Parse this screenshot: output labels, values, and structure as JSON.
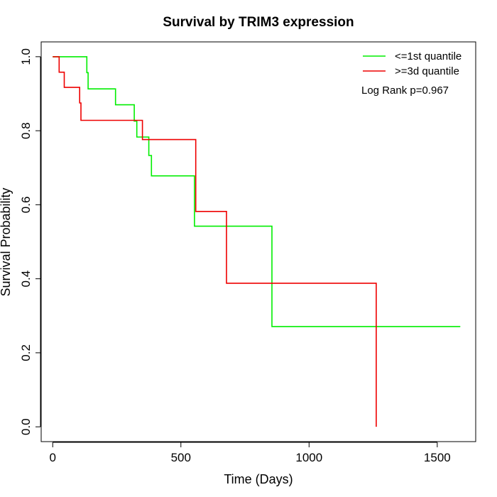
{
  "chart_data": {
    "type": "line",
    "title": "Survival by TRIM3 expression",
    "xlabel": "Time (Days)",
    "ylabel": "Survival Probability",
    "xlim": [
      -45,
      1650
    ],
    "ylim": [
      -0.04,
      1.04
    ],
    "x_ticks": [
      0,
      500,
      1000,
      1500
    ],
    "x_tick_labels": [
      "0",
      "500",
      "1000",
      "1500"
    ],
    "y_ticks": [
      0.0,
      0.2,
      0.4,
      0.6,
      0.8,
      1.0
    ],
    "y_tick_labels": [
      "0.0",
      "0.2",
      "0.4",
      "0.6",
      "0.8",
      "1.0"
    ],
    "grid": false,
    "legend_position": "top-right",
    "annotation": "Log Rank p=0.967",
    "series": [
      {
        "name": "<=1st quantile",
        "color": "#00ee00",
        "steps": [
          {
            "t": 0,
            "s": 1.0
          },
          {
            "t": 133,
            "s": 0.957
          },
          {
            "t": 138,
            "s": 0.913
          },
          {
            "t": 245,
            "s": 0.87
          },
          {
            "t": 318,
            "s": 0.826
          },
          {
            "t": 328,
            "s": 0.783
          },
          {
            "t": 375,
            "s": 0.733
          },
          {
            "t": 385,
            "s": 0.678
          },
          {
            "t": 553,
            "s": 0.542
          },
          {
            "t": 855,
            "s": 0.271
          },
          {
            "t": 1590,
            "s": 0.271
          }
        ]
      },
      {
        "name": ">=3d quantile",
        "color": "#ee0000",
        "steps": [
          {
            "t": 0,
            "s": 1.0
          },
          {
            "t": 25,
            "s": 0.958
          },
          {
            "t": 45,
            "s": 0.917
          },
          {
            "t": 105,
            "s": 0.875
          },
          {
            "t": 110,
            "s": 0.828
          },
          {
            "t": 350,
            "s": 0.776
          },
          {
            "t": 558,
            "s": 0.582
          },
          {
            "t": 678,
            "s": 0.388
          },
          {
            "t": 1262,
            "s": 0.0
          }
        ]
      }
    ]
  }
}
